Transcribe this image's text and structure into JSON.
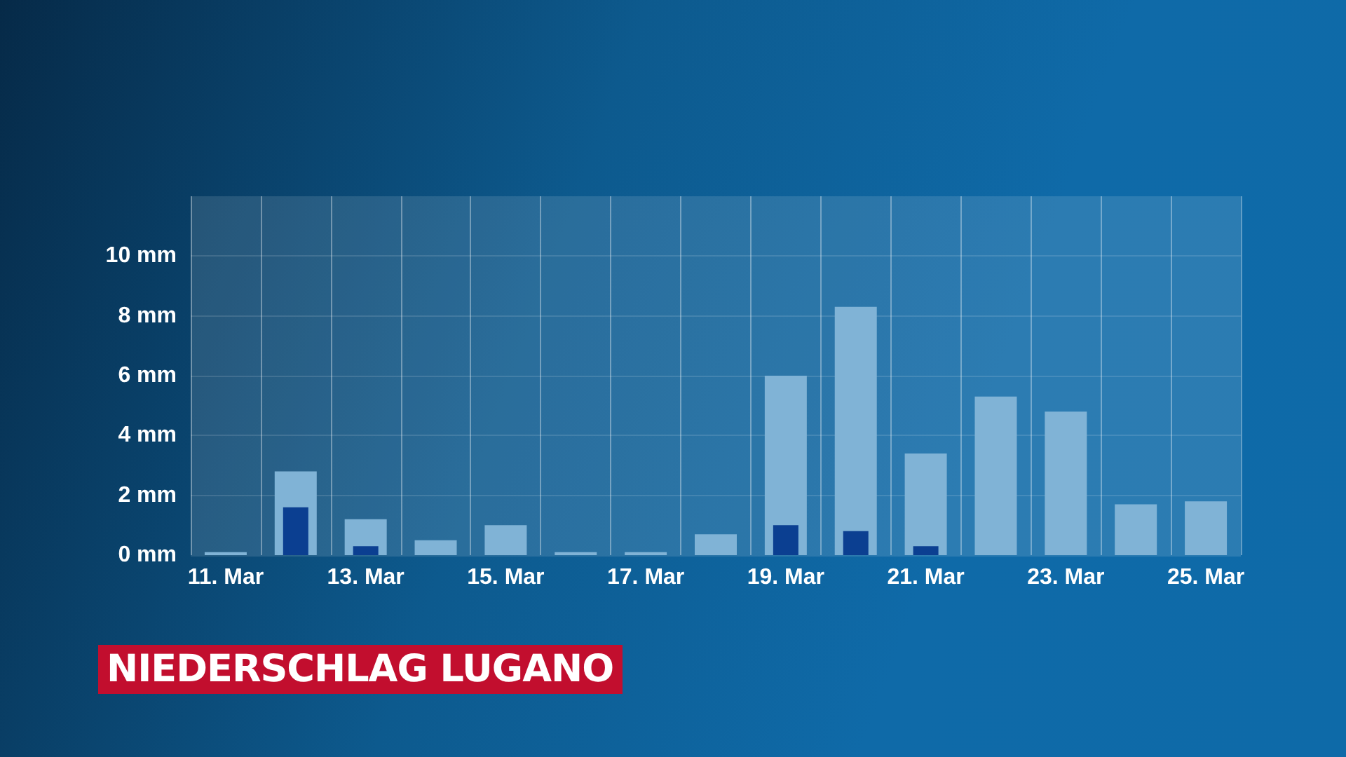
{
  "chart_data": {
    "type": "bar",
    "title": "NIEDERSCHLAG LUGANO",
    "categories": [
      "11. Mar",
      null,
      "13. Mar",
      null,
      "15. Mar",
      null,
      "17. Mar",
      null,
      "19. Mar",
      null,
      "21. Mar",
      null,
      "23. Mar",
      null,
      "25. Mar"
    ],
    "series": [
      {
        "color": "#80b3d6",
        "values": [
          0.1,
          2.8,
          1.2,
          0.5,
          1.0,
          0.1,
          0.1,
          0.7,
          6.0,
          8.3,
          3.4,
          5.3,
          4.8,
          1.7,
          1.8
        ]
      },
      {
        "color": "#0b3f91",
        "values": [
          null,
          1.6,
          0.3,
          null,
          null,
          null,
          null,
          null,
          1.0,
          0.8,
          0.3,
          null,
          null,
          null,
          null
        ]
      }
    ],
    "ylim": [
      0,
      12
    ],
    "yticks": [
      {
        "value": 0,
        "label": "0 mm"
      },
      {
        "value": 2,
        "label": "2 mm"
      },
      {
        "value": 4,
        "label": "4 mm"
      },
      {
        "value": 6,
        "label": "6 mm"
      },
      {
        "value": 8,
        "label": "8 mm"
      },
      {
        "value": 10,
        "label": "10 mm"
      }
    ],
    "grid": true
  }
}
